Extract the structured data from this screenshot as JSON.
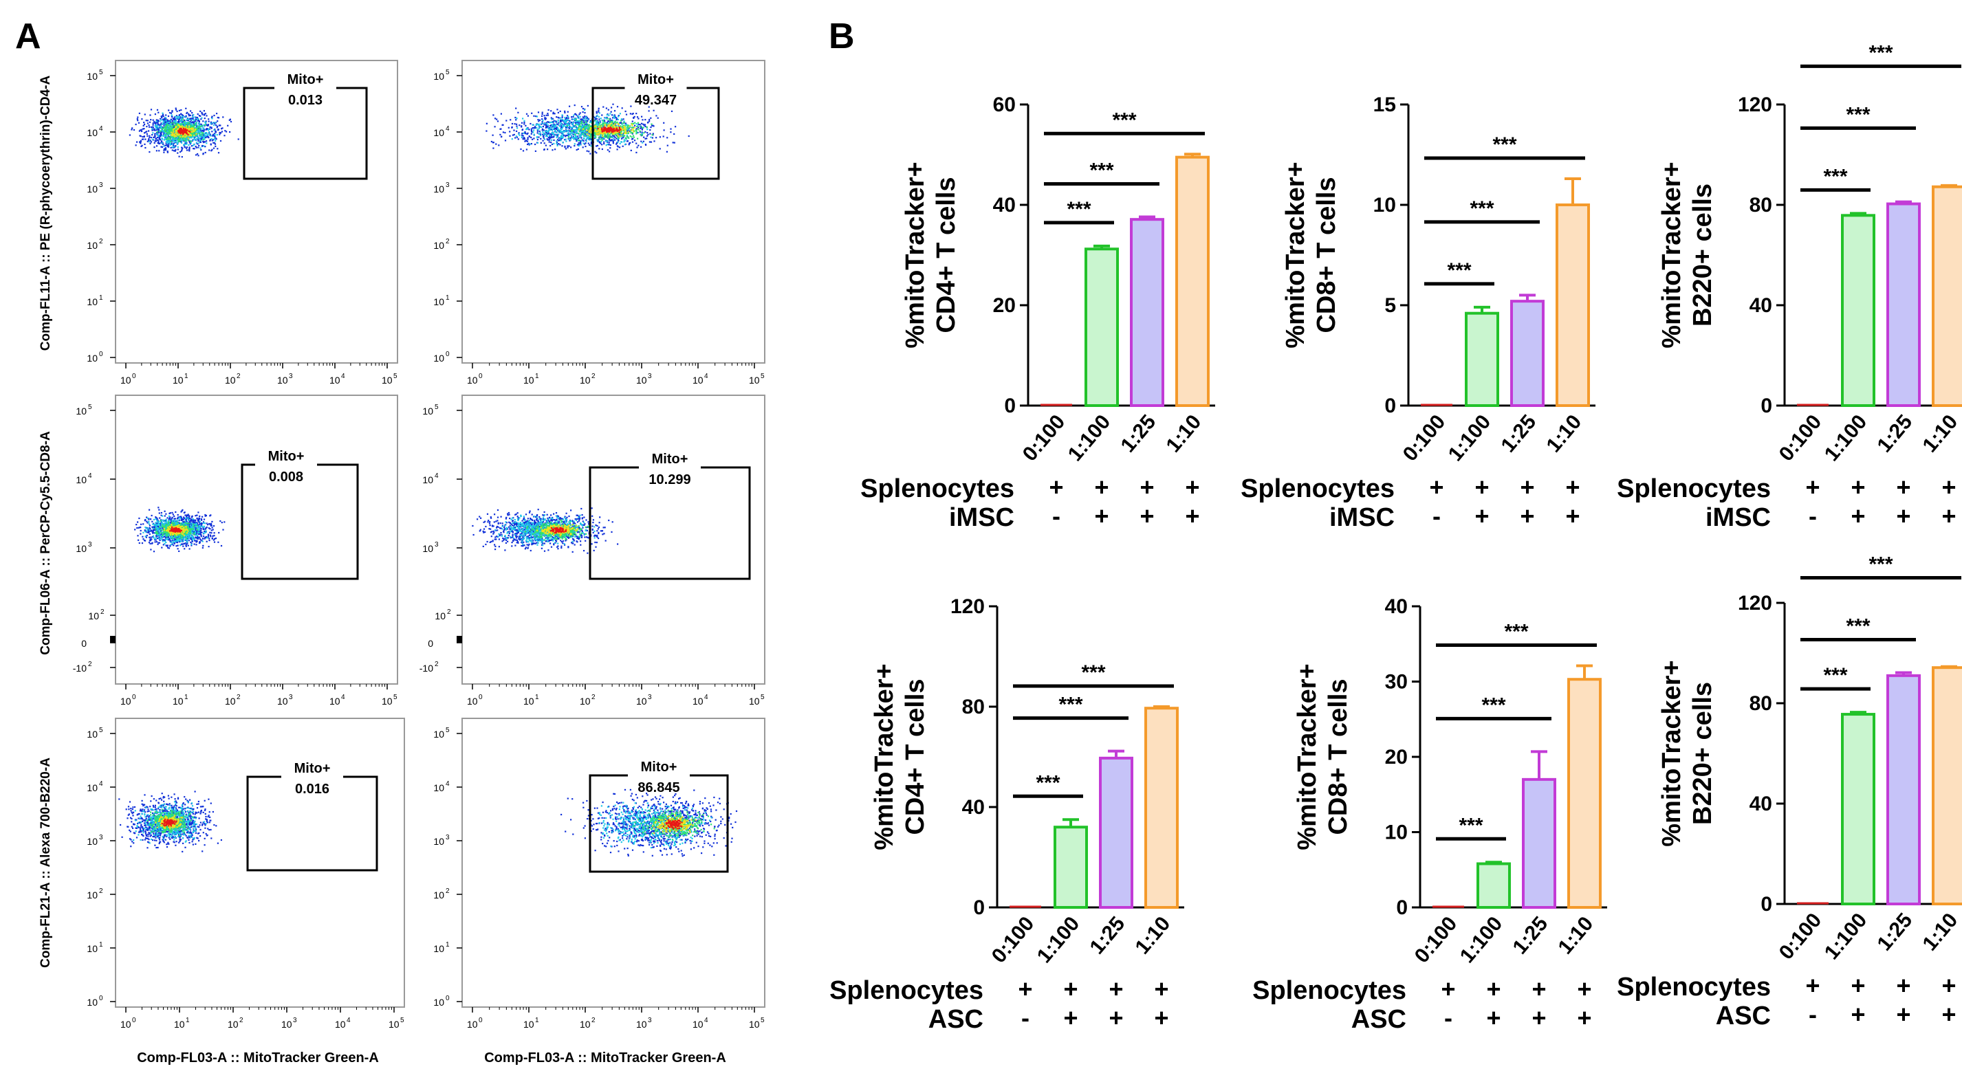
{
  "panel_labels": {
    "a": "A",
    "b": "B"
  },
  "colors": {
    "green": "#22c22a",
    "green_fill": "#c9f5cf",
    "purple": "#c23bd6",
    "purple_fill": "#c6c3f8",
    "orange": "#f49a2b",
    "orange_fill": "#fde0bf",
    "red": "#d62020",
    "dot_blue": "#1030d8",
    "dot_cyan": "#20c8e8",
    "dot_yellow": "#f0e020",
    "dot_red": "#e81818"
  },
  "flow_axis": {
    "x_label": "Comp-FL03-A :: MitoTracker Green-A",
    "x_ticks": [
      "10",
      "10",
      "10",
      "10",
      "10",
      "10"
    ],
    "x_exps": [
      "0",
      "1",
      "2",
      "3",
      "4",
      "5"
    ],
    "y_ticks_log": [
      "10",
      "10",
      "10",
      "10",
      "10",
      "10"
    ],
    "y_exps_log": [
      "0",
      "1",
      "2",
      "3",
      "4",
      "5"
    ],
    "y_row2_ticks": [
      "10",
      "10",
      "10",
      "0",
      "-10"
    ],
    "y_row2_exps": [
      "5",
      "4",
      "3",
      "",
      "2"
    ],
    "y_row2_extra": [
      "10"
    ],
    "y_row2_extra_exp": [
      "2"
    ]
  },
  "flow_rows": [
    {
      "y_label": "Comp-FL11-A :: PE (R-phycoerythrin)-CD4-A"
    },
    {
      "y_label": "Comp-FL06-A :: PerCP-Cy5.5-CD8-A"
    },
    {
      "y_label": "Comp-FL21-A :: Alexa 700-B220-A"
    }
  ],
  "flow_plots": [
    {
      "gate_label": "Mito+",
      "value": "0.013"
    },
    {
      "gate_label": "Mito+",
      "value": "49.347"
    },
    {
      "gate_label": "Mito+",
      "value": "0.008"
    },
    {
      "gate_label": "Mito+",
      "value": "10.299"
    },
    {
      "gate_label": "Mito+",
      "value": "0.016"
    },
    {
      "gate_label": "Mito+",
      "value": "86.845"
    }
  ],
  "chart_data": [
    {
      "type": "bar",
      "title": "",
      "ylabel_line1": "%mitoTracker+",
      "ylabel_line2": "CD4+ T cells",
      "categories": [
        "0:100",
        "1:100",
        "1:25",
        "1:10"
      ],
      "values": [
        0,
        31.2,
        37.1,
        49.5
      ],
      "errors": [
        0,
        0.6,
        0.5,
        0.6
      ],
      "ylim": [
        0,
        60
      ],
      "yticks": [
        "0",
        "20",
        "40",
        "60"
      ],
      "yticks_values": [
        0,
        20,
        40,
        60
      ],
      "sig": [
        {
          "from": 0,
          "to": 1,
          "label": "***"
        },
        {
          "from": 0,
          "to": 2,
          "label": "***"
        },
        {
          "from": 0,
          "to": 3,
          "label": "***"
        }
      ],
      "row1_label": "Splenocytes",
      "row1_signs": [
        "+",
        "+",
        "+",
        "+"
      ],
      "row2_label": "iMSC",
      "row2_signs": [
        "-",
        "+",
        "+",
        "+"
      ]
    },
    {
      "type": "bar",
      "title": "",
      "ylabel_line1": "%mitoTracker+",
      "ylabel_line2": "CD8+ T cells",
      "categories": [
        "0:100",
        "1:100",
        "1:25",
        "1:10"
      ],
      "values": [
        0,
        4.6,
        5.2,
        10.0
      ],
      "errors": [
        0,
        0.3,
        0.3,
        1.3
      ],
      "ylim": [
        0,
        15
      ],
      "yticks": [
        "0",
        "5",
        "10",
        "15"
      ],
      "yticks_values": [
        0,
        5,
        10,
        15
      ],
      "sig": [
        {
          "from": 0,
          "to": 1,
          "label": "***"
        },
        {
          "from": 0,
          "to": 2,
          "label": "***"
        },
        {
          "from": 0,
          "to": 3,
          "label": "***"
        }
      ],
      "row1_label": "Splenocytes",
      "row1_signs": [
        "+",
        "+",
        "+",
        "+"
      ],
      "row2_label": "iMSC",
      "row2_signs": [
        "-",
        "+",
        "+",
        "+"
      ]
    },
    {
      "type": "bar",
      "title": "",
      "ylabel_line1": "%mitoTracker+",
      "ylabel_line2": "B220+ cells",
      "categories": [
        "0:100",
        "1:100",
        "1:25",
        "1:10"
      ],
      "values": [
        0,
        75.8,
        80.4,
        87.2
      ],
      "errors": [
        0,
        0.8,
        0.8,
        0.5
      ],
      "ylim": [
        0,
        120
      ],
      "yticks": [
        "0",
        "40",
        "80",
        "120"
      ],
      "yticks_values": [
        0,
        40,
        80,
        120
      ],
      "sig": [
        {
          "from": 0,
          "to": 1,
          "label": "***"
        },
        {
          "from": 0,
          "to": 2,
          "label": "***"
        },
        {
          "from": 0,
          "to": 3,
          "label": "***"
        }
      ],
      "row1_label": "Splenocytes",
      "row1_signs": [
        "+",
        "+",
        "+",
        "+"
      ],
      "row2_label": "iMSC",
      "row2_signs": [
        "-",
        "+",
        "+",
        "+"
      ]
    },
    {
      "type": "bar",
      "title": "",
      "ylabel_line1": "%mitoTracker+",
      "ylabel_line2": "CD4+ T cells",
      "categories": [
        "0:100",
        "1:100",
        "1:25",
        "1:10"
      ],
      "values": [
        0,
        32.0,
        59.5,
        79.4
      ],
      "errors": [
        0,
        3.0,
        2.8,
        0.6
      ],
      "ylim": [
        0,
        120
      ],
      "yticks": [
        "0",
        "40",
        "80",
        "120"
      ],
      "yticks_values": [
        0,
        40,
        80,
        120
      ],
      "sig": [
        {
          "from": 0,
          "to": 1,
          "label": "***"
        },
        {
          "from": 0,
          "to": 2,
          "label": "***"
        },
        {
          "from": 0,
          "to": 3,
          "label": "***"
        }
      ],
      "row1_label": "Splenocytes",
      "row1_signs": [
        "+",
        "+",
        "+",
        "+"
      ],
      "row2_label": "ASC",
      "row2_signs": [
        "-",
        "+",
        "+",
        "+"
      ]
    },
    {
      "type": "bar",
      "title": "",
      "ylabel_line1": "%mitoTracker+",
      "ylabel_line2": "CD8+ T cells",
      "categories": [
        "0:100",
        "1:100",
        "1:25",
        "1:10"
      ],
      "values": [
        0.1,
        5.8,
        17.0,
        30.3
      ],
      "errors": [
        0,
        0.2,
        3.7,
        1.8
      ],
      "ylim": [
        0,
        40
      ],
      "yticks": [
        "0",
        "10",
        "20",
        "30",
        "40"
      ],
      "yticks_values": [
        0,
        10,
        20,
        30,
        40
      ],
      "sig": [
        {
          "from": 0,
          "to": 1,
          "label": "***"
        },
        {
          "from": 0,
          "to": 2,
          "label": "***"
        },
        {
          "from": 0,
          "to": 3,
          "label": "***"
        }
      ],
      "row1_label": "Splenocytes",
      "row1_signs": [
        "+",
        "+",
        "+",
        "+"
      ],
      "row2_label": "ASC",
      "row2_signs": [
        "-",
        "+",
        "+",
        "+"
      ]
    },
    {
      "type": "bar",
      "title": "",
      "ylabel_line1": "%mitoTracker+",
      "ylabel_line2": "B220+ cells",
      "categories": [
        "0:100",
        "1:100",
        "1:25",
        "1:10"
      ],
      "values": [
        0,
        75.6,
        91.0,
        94.2
      ],
      "errors": [
        0,
        0.8,
        1.2,
        0.4
      ],
      "ylim": [
        0,
        120
      ],
      "yticks": [
        "0",
        "40",
        "80",
        "120"
      ],
      "yticks_values": [
        0,
        40,
        80,
        120
      ],
      "sig": [
        {
          "from": 0,
          "to": 1,
          "label": "***"
        },
        {
          "from": 0,
          "to": 2,
          "label": "***"
        },
        {
          "from": 0,
          "to": 3,
          "label": "***"
        }
      ],
      "row1_label": "Splenocytes",
      "row1_signs": [
        "+",
        "+",
        "+",
        "+"
      ],
      "row2_label": "ASC",
      "row2_signs": [
        "-",
        "+",
        "+",
        "+"
      ]
    }
  ]
}
